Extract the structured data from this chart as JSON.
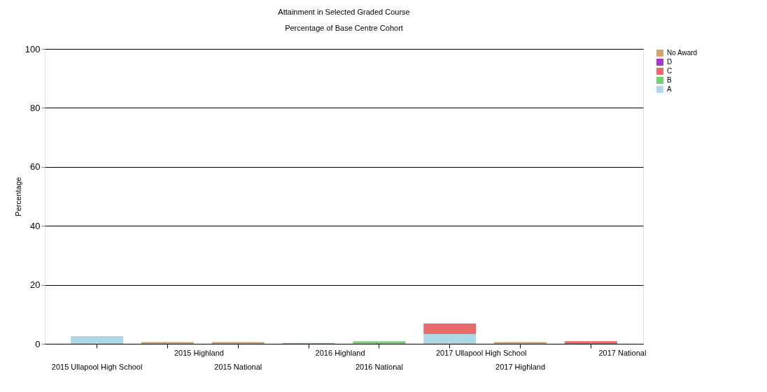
{
  "chart_data": {
    "type": "bar",
    "title": "Attainment in Selected Graded Course",
    "subtitle": "Percentage of Base Centre Cohort",
    "ylabel": "Percentage",
    "categories": [
      "2015 Ullapool High School",
      "2015 Highland",
      "2015 National",
      "2016 Highland",
      "2016 National",
      "2017 Ullapool High School",
      "2017 Highland",
      "2017 National"
    ],
    "stacked": true,
    "series": [
      {
        "name": "A",
        "color": "#add8e6",
        "values": [
          2.6,
          0,
          0,
          0,
          0,
          3.3,
          0,
          0
        ]
      },
      {
        "name": "B",
        "color": "#6fd46f",
        "values": [
          0,
          0,
          0,
          0.3,
          0.8,
          0,
          0,
          0
        ]
      },
      {
        "name": "C",
        "color": "#e86a6a",
        "values": [
          0,
          0,
          0,
          0,
          0,
          3.6,
          0,
          0.9
        ]
      },
      {
        "name": "D",
        "color": "#a838c8",
        "values": [
          0,
          0,
          0,
          0,
          0,
          0,
          0,
          0
        ]
      },
      {
        "name": "No Award",
        "color": "#d2a46a",
        "values": [
          0,
          0.6,
          0.6,
          0,
          0,
          0,
          0.6,
          0
        ]
      }
    ],
    "ylim": [
      0,
      100
    ],
    "yticks": [
      0,
      20,
      40,
      60,
      80,
      100
    ],
    "grid": "y",
    "legend": "top right"
  }
}
